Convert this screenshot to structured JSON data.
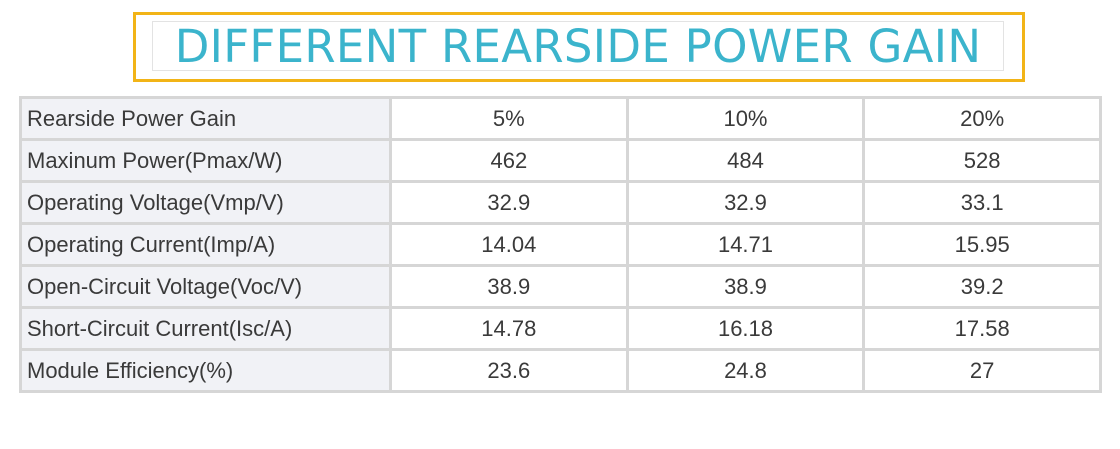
{
  "title": "DIFFERENT REARSIDE POWER GAIN",
  "table": {
    "rows": [
      {
        "label": "Rearside Power Gain",
        "values": [
          "5%",
          "10%",
          "20%"
        ]
      },
      {
        "label": "Maxinum Power(Pmax/W)",
        "values": [
          "462",
          "484",
          "528"
        ]
      },
      {
        "label": "Operating Voltage(Vmp/V)",
        "values": [
          "32.9",
          "32.9",
          "33.1"
        ]
      },
      {
        "label": "Operating Current(Imp/A)",
        "values": [
          "14.04",
          "14.71",
          "15.95"
        ]
      },
      {
        "label": "Open-Circuit Voltage(Voc/V)",
        "values": [
          "38.9",
          "38.9",
          "39.2"
        ]
      },
      {
        "label": "Short-Circuit Current(Isc/A)",
        "values": [
          "14.78",
          "16.18",
          "17.58"
        ]
      },
      {
        "label": "Module Efficiency(%)",
        "values": [
          "23.6",
          "24.8",
          "27"
        ]
      }
    ]
  },
  "colors": {
    "title_text": "#3bb4cc",
    "title_border": "#f2b417",
    "grid": "#d6d6d6",
    "label_bg": "#f1f2f6",
    "cell_text": "#3a3a3a"
  }
}
